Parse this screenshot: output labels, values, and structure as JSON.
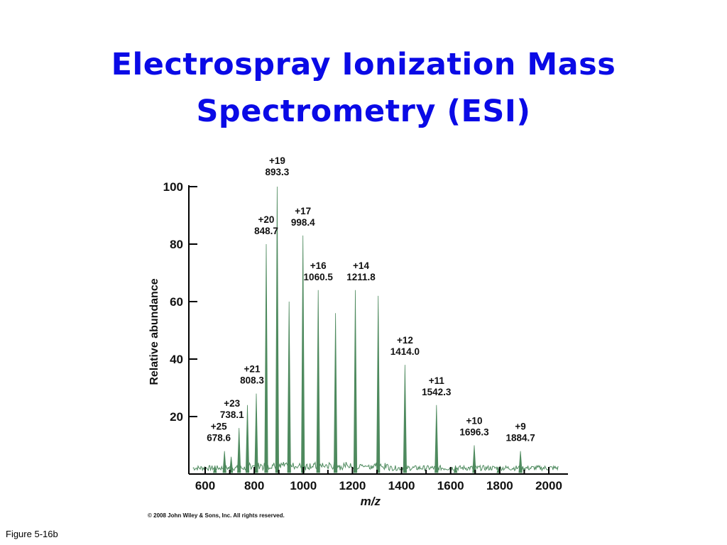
{
  "slide": {
    "title_line1": "Electrospray Ionization Mass",
    "title_line2": "Spectrometry (ESI)",
    "copyright": "© 2008 John Wiley & Sons, Inc. All rights reserved.",
    "figure_label": "Figure 5-16b"
  },
  "colors": {
    "title": "#0a0ae6",
    "spectrum": "#4e8a5e",
    "axis": "#000000"
  },
  "chart_data": {
    "type": "line",
    "xlabel": "m/z",
    "ylabel": "Relative abundance",
    "xlim": [
      540,
      2060
    ],
    "ylim": [
      0,
      100
    ],
    "x_ticks": [
      600,
      800,
      1000,
      1200,
      1400,
      1600,
      1800,
      2000
    ],
    "y_ticks": [
      20,
      40,
      60,
      80,
      100
    ],
    "peaks": [
      {
        "mz": 640,
        "abundance": 3
      },
      {
        "mz": 678.6,
        "abundance": 8,
        "charge": "+25",
        "mz_label": "678.6"
      },
      {
        "mz": 706,
        "abundance": 6
      },
      {
        "mz": 738.1,
        "abundance": 16,
        "charge": "+23",
        "mz_label": "738.1"
      },
      {
        "mz": 772,
        "abundance": 24
      },
      {
        "mz": 808.3,
        "abundance": 28,
        "charge": "+21",
        "mz_label": "808.3"
      },
      {
        "mz": 848.7,
        "abundance": 80,
        "charge": "+20",
        "mz_label": "848.7"
      },
      {
        "mz": 893.3,
        "abundance": 100,
        "charge": "+19",
        "mz_label": "893.3"
      },
      {
        "mz": 942,
        "abundance": 60
      },
      {
        "mz": 998.4,
        "abundance": 83,
        "charge": "+17",
        "mz_label": "998.4"
      },
      {
        "mz": 1060.5,
        "abundance": 64,
        "charge": "+16",
        "mz_label": "1060.5"
      },
      {
        "mz": 1131,
        "abundance": 56
      },
      {
        "mz": 1211.8,
        "abundance": 64,
        "charge": "+14",
        "mz_label": "1211.8"
      },
      {
        "mz": 1305,
        "abundance": 62
      },
      {
        "mz": 1414.0,
        "abundance": 38,
        "charge": "+12",
        "mz_label": "1414.0"
      },
      {
        "mz": 1542.3,
        "abundance": 24,
        "charge": "+11",
        "mz_label": "1542.3"
      },
      {
        "mz": 1620,
        "abundance": 3
      },
      {
        "mz": 1696.3,
        "abundance": 10,
        "charge": "+10",
        "mz_label": "1696.3"
      },
      {
        "mz": 1795,
        "abundance": 2
      },
      {
        "mz": 1884.7,
        "abundance": 8,
        "charge": "+9",
        "mz_label": "1884.7"
      }
    ],
    "grid": false,
    "legend": "none"
  }
}
